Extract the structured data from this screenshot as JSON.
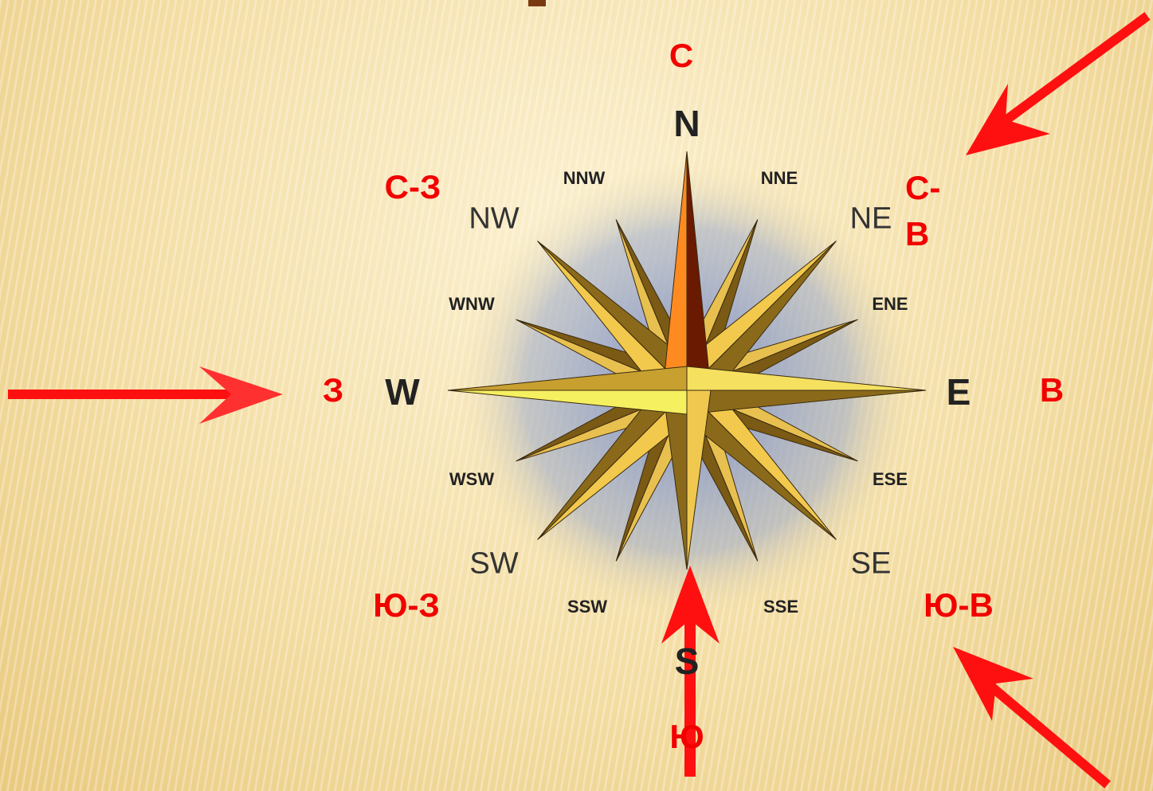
{
  "compass": {
    "english": {
      "N": "N",
      "NNE": "NNE",
      "NE": "NE",
      "ENE": "ENE",
      "E": "E",
      "ESE": "ESE",
      "SE": "SE",
      "SSE": "SSE",
      "S": "S",
      "SSW": "SSW",
      "SW": "SW",
      "WSW": "WSW",
      "W": "W",
      "WNW": "WNW",
      "NW": "NW",
      "NNW": "NNW"
    },
    "russian": {
      "north": "С",
      "north_west": "С-З",
      "north_east": "С-В",
      "west": "З",
      "east": "В",
      "south_west": "Ю-З",
      "south_east": "Ю-В",
      "south": "Ю"
    }
  }
}
